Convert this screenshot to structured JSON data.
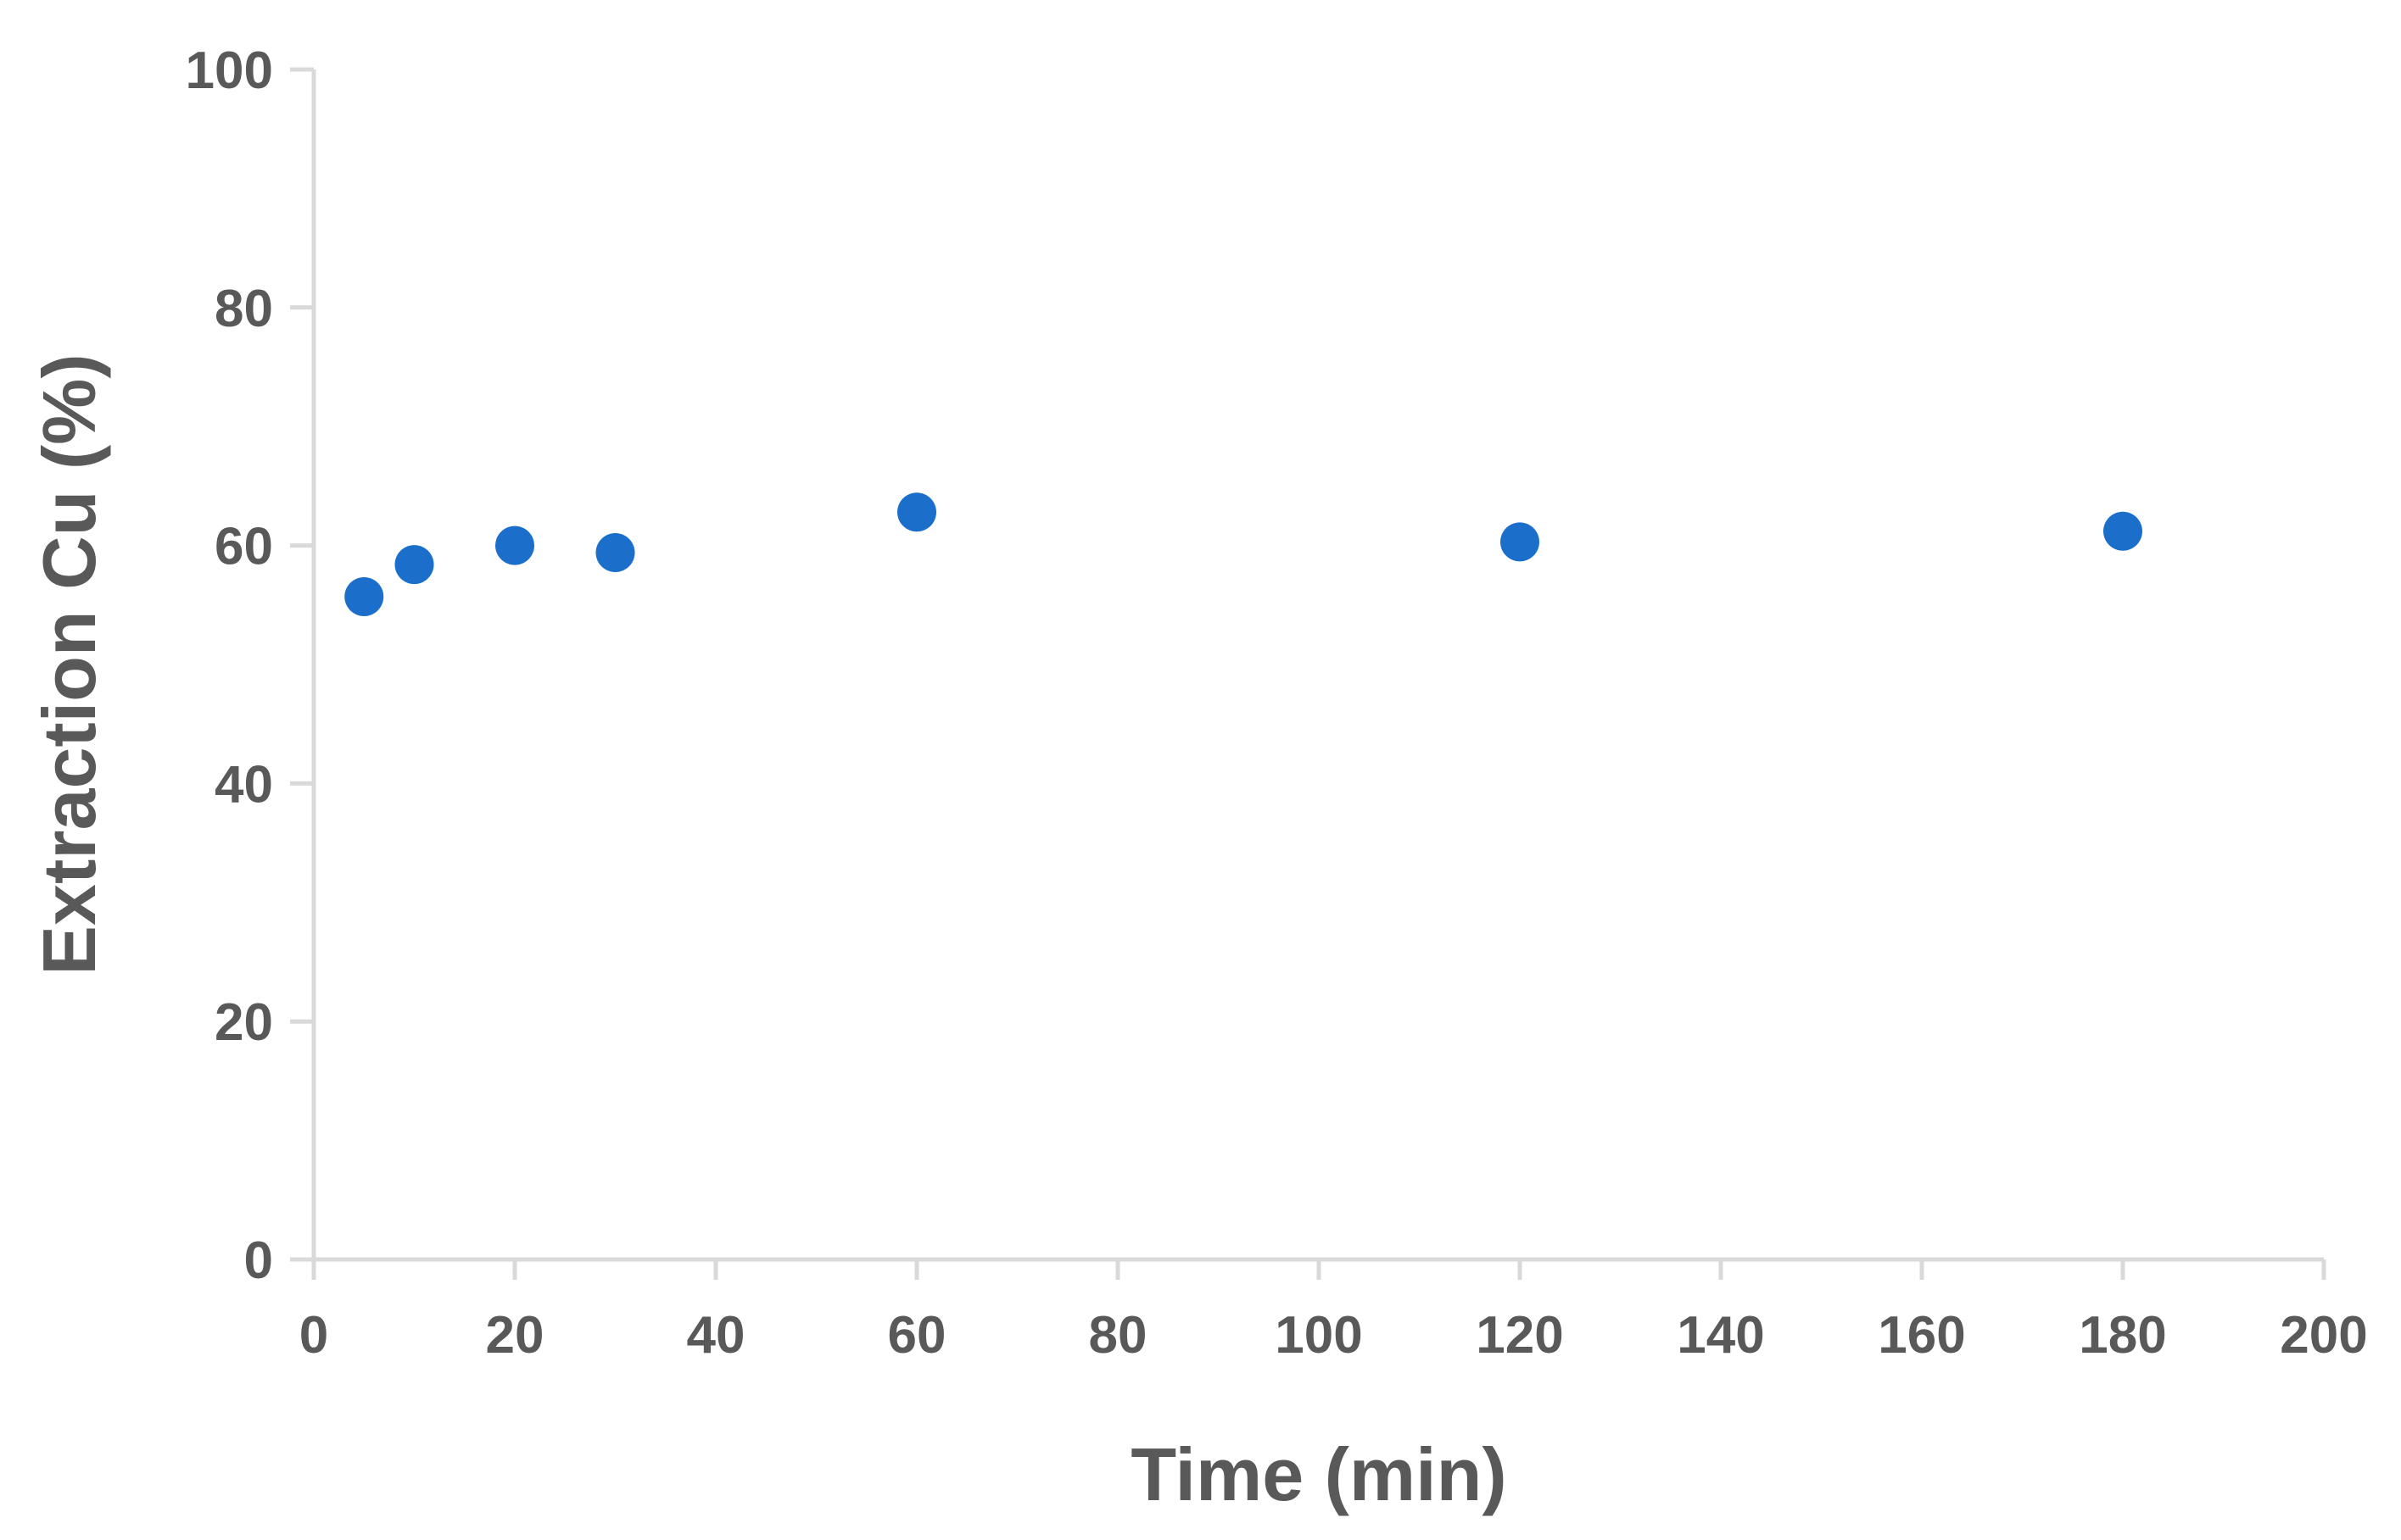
{
  "chart_data": {
    "type": "scatter",
    "xlabel": "Time (min)",
    "ylabel": "Extraction Cu (%)",
    "xlim": [
      0,
      200
    ],
    "ylim": [
      0,
      100
    ],
    "x_ticks": [
      0,
      20,
      40,
      60,
      80,
      100,
      120,
      140,
      160,
      180,
      200
    ],
    "y_ticks": [
      0,
      20,
      40,
      60,
      80,
      100
    ],
    "grid": false,
    "legend": "none",
    "series": [
      {
        "points": [
          {
            "x": 5,
            "y": 55.7
          },
          {
            "x": 10,
            "y": 58.4
          },
          {
            "x": 20,
            "y": 60.0
          },
          {
            "x": 30,
            "y": 59.4
          },
          {
            "x": 60,
            "y": 62.8
          },
          {
            "x": 120,
            "y": 60.3
          },
          {
            "x": 180,
            "y": 61.2
          }
        ]
      }
    ],
    "colors": {
      "marker": "#1b6fcb",
      "axis": "#d9d9d9",
      "text": "#595959"
    }
  }
}
